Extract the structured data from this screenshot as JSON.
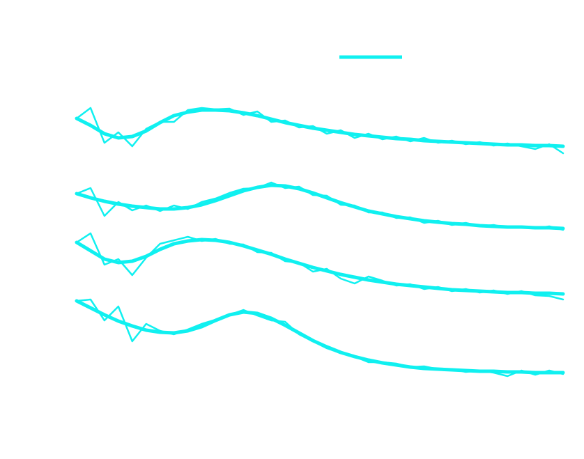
{
  "chart_data": {
    "type": "line",
    "x": [
      0,
      20,
      40,
      60,
      80,
      100,
      120,
      140,
      160,
      180,
      200,
      220,
      240,
      260,
      280,
      300,
      320,
      340,
      360,
      380,
      400,
      420,
      440,
      460,
      480,
      500,
      520,
      540,
      560,
      580,
      600,
      620,
      640,
      660,
      680,
      700
    ],
    "xlim": [
      0,
      700
    ],
    "ylim": [
      0,
      100
    ],
    "series": [
      {
        "color": "#10f0f0",
        "style": "data",
        "values": [
          86,
          89,
          79,
          82,
          78,
          83,
          85,
          85,
          88.4,
          89,
          88.6,
          88.8,
          87,
          88,
          85,
          85.4,
          83.4,
          83.8,
          81.6,
          82.6,
          80.4,
          81.6,
          80,
          80.8,
          79.4,
          80.4,
          79,
          79.6,
          78.6,
          79.2,
          78.2,
          78.8,
          78,
          77.2,
          78.6,
          76
        ]
      },
      {
        "color": "#10f0f0",
        "style": "fit",
        "values": [
          86,
          84,
          81.6,
          80.4,
          80.8,
          82.4,
          84.8,
          86.8,
          87.8,
          88.4,
          88.4,
          88.2,
          87.6,
          86.8,
          85.8,
          84.8,
          84,
          83.2,
          82.6,
          82,
          81.4,
          81,
          80.6,
          80.2,
          80,
          79.6,
          79.4,
          79.2,
          79,
          78.8,
          78.6,
          78.4,
          78.4,
          78.2,
          78.2,
          78
        ]
      },
      {
        "color": "#10f0f0",
        "style": "data",
        "values": [
          64.4,
          66,
          58,
          62,
          59.6,
          61,
          59.4,
          61,
          60,
          62,
          63,
          64.6,
          65.8,
          66,
          67.6,
          66,
          66.4,
          64,
          63.8,
          61.2,
          61,
          59,
          59,
          57.4,
          57.6,
          56,
          56.6,
          55.4,
          56,
          55,
          55.4,
          54.6,
          55,
          54.4,
          55,
          54
        ]
      },
      {
        "color": "#10f0f0",
        "style": "fit",
        "values": [
          64.4,
          63.2,
          62.2,
          61.4,
          60.8,
          60.4,
          60,
          60,
          60.4,
          61.2,
          62.4,
          63.8,
          65.2,
          66.2,
          66.8,
          66.6,
          65.8,
          64.6,
          63.2,
          61.8,
          60.6,
          59.4,
          58.6,
          57.8,
          57.2,
          56.6,
          56.2,
          55.8,
          55.6,
          55.2,
          55,
          54.8,
          54.8,
          54.6,
          54.6,
          54.4
        ]
      },
      {
        "color": "#10f0f0",
        "style": "data",
        "values": [
          50.4,
          53,
          44,
          45.6,
          41,
          46,
          50,
          51,
          52,
          50.8,
          51.4,
          50,
          49.8,
          47.6,
          47.4,
          45,
          44.6,
          42,
          42.8,
          40,
          38.6,
          40.6,
          39.4,
          38,
          38.4,
          37,
          37.6,
          36.4,
          37,
          36,
          36.6,
          35.6,
          36.4,
          35.2,
          35,
          34
        ]
      },
      {
        "color": "#10f0f0",
        "style": "fit",
        "values": [
          50.4,
          48,
          45.6,
          44.6,
          45,
          46.4,
          48.4,
          50,
          50.8,
          51.2,
          51,
          50.4,
          49.4,
          48.2,
          47,
          45.6,
          44.4,
          43.2,
          42.2,
          41.2,
          40.4,
          39.6,
          39,
          38.4,
          38,
          37.6,
          37.2,
          36.8,
          36.6,
          36.4,
          36.2,
          36,
          36,
          35.8,
          35.8,
          35.6
        ]
      },
      {
        "color": "#10f0f0",
        "style": "data",
        "values": [
          33.6,
          34,
          28,
          32,
          22,
          27,
          25,
          24,
          25.4,
          27,
          28.2,
          29.6,
          31,
          29.4,
          28,
          27.6,
          24,
          22,
          20,
          18.6,
          17.6,
          16,
          16,
          15.6,
          14.6,
          14.8,
          14,
          14,
          13.2,
          13.6,
          13,
          12,
          13.6,
          12.4,
          13.6,
          12.6
        ]
      },
      {
        "color": "#10f0f0",
        "style": "fit",
        "values": [
          33.6,
          31.6,
          29.6,
          27.8,
          26.4,
          25.2,
          24.6,
          24.4,
          25,
          26.2,
          28,
          29.6,
          30.4,
          30,
          28.6,
          26.6,
          24.4,
          22.2,
          20.4,
          18.8,
          17.6,
          16.6,
          15.8,
          15.2,
          14.6,
          14.2,
          14,
          13.8,
          13.6,
          13.4,
          13.4,
          13.2,
          13.2,
          13,
          13,
          13
        ]
      }
    ]
  }
}
